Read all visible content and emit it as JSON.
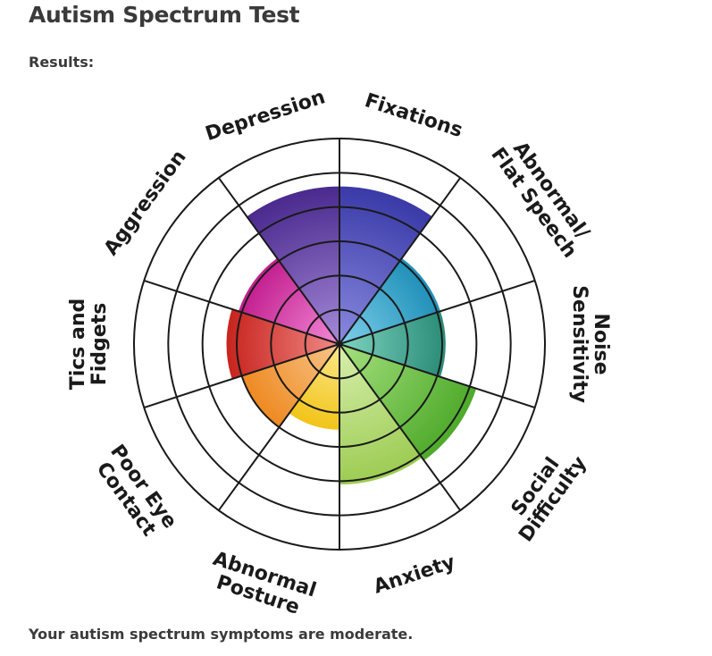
{
  "page": {
    "title": "Autism Spectrum Test",
    "results_label": "Results:",
    "verdict": "Your autism spectrum symptoms are moderate."
  },
  "chart_data": {
    "type": "radial-bar",
    "max_level": 6,
    "grid_rings": 6,
    "categories": [
      {
        "label": [
          "Fixations"
        ],
        "value": 4.6,
        "color": "#3a3aa8",
        "light": "#8a8ae0"
      },
      {
        "label": [
          "Abnormal/",
          "Flat Speech"
        ],
        "value": 3.1,
        "color": "#1f8fb8",
        "light": "#7fd0ea"
      },
      {
        "label": [
          "Noise",
          "Sensitivity"
        ],
        "value": 3.1,
        "color": "#2a8c78",
        "light": "#7fd4bf"
      },
      {
        "label": [
          "Social",
          "Difficulty"
        ],
        "value": 4.2,
        "color": "#4eaa2a",
        "light": "#a6e07f"
      },
      {
        "label": [
          "Anxiety"
        ],
        "value": 4.1,
        "color": "#9ccc52",
        "light": "#d8efae"
      },
      {
        "label": [
          "Abnormal",
          "Posture"
        ],
        "value": 2.5,
        "color": "#f2c419",
        "light": "#fbe88a"
      },
      {
        "label": [
          "Poor Eye",
          "Contact"
        ],
        "value": 3.0,
        "color": "#ee8a22",
        "light": "#f8c58a"
      },
      {
        "label": [
          "Tics and",
          "Fidgets"
        ],
        "value": 3.3,
        "color": "#c8241e",
        "light": "#f08a86"
      },
      {
        "label": [
          "Aggression"
        ],
        "value": 3.1,
        "color": "#c21e8e",
        "light": "#f28ad6"
      },
      {
        "label": [
          "Depression"
        ],
        "value": 4.6,
        "color": "#4a2a8e",
        "light": "#a58ad8"
      }
    ]
  }
}
